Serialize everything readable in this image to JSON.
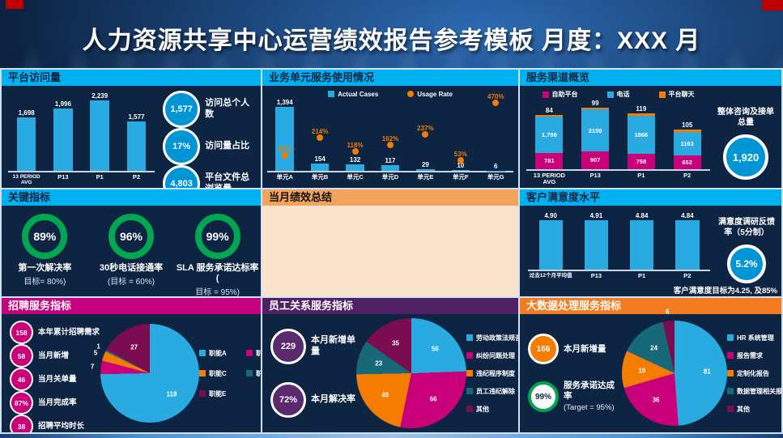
{
  "title": "人力资源共享中心运营绩效报告参考模板 月度：XXX 月",
  "colors": {
    "accent_cyan": "#00B0F0",
    "bar_blue": "#29ABE2",
    "magenta": "#C9007A",
    "orange": "#F47C00",
    "teal": "#17697A",
    "maroon": "#7C0C50",
    "green": "#00A650",
    "kpi_blue": "#0096D6",
    "header_magenta": "#C5007C",
    "header_purple": "#4F2063",
    "header_orange": "#F47B20",
    "summary_header": "#F2A45C",
    "summary_body": "#FBE3CD",
    "title_red": "#C00000",
    "panel_navy": "#0D2443"
  },
  "panels": {
    "platform": {
      "header": "平台访问量",
      "kpis": [
        {
          "value": "1,577",
          "label": "访问总个人数"
        },
        {
          "value": "17%",
          "label": "访问量占比"
        },
        {
          "value": "4,803",
          "label": "平台文件总浏览量"
        }
      ]
    },
    "business_units": {
      "header": "业务单元服务使用情况"
    },
    "channels": {
      "header": "服务渠道概览",
      "side_label": "整体咨询及接单总量",
      "total": "1,920"
    },
    "key_metrics": {
      "header": "关键指标",
      "gauges": [
        {
          "value": "89%",
          "label": "第一次解决率",
          "target": "目标= 80%)"
        },
        {
          "value": "96%",
          "label": "30秒电话接通率",
          "target": "(目标 = 60%)"
        },
        {
          "value": "99%",
          "label": "SLA 服务承诺达标率(",
          "target": "目标 = 95%)"
        }
      ]
    },
    "summary": {
      "header": "当月绩效总结"
    },
    "csat": {
      "header": "客户满意度水平",
      "side_label": "满意度调研反馈率（5分制）",
      "rate": "5.2%",
      "note": "客户满意度目标为4.25, 及85%"
    },
    "recruiting": {
      "header": "招聘服务指标",
      "kpis": [
        {
          "value": "158",
          "label": "本年累计招聘需求"
        },
        {
          "value": "58",
          "label": "当月新增"
        },
        {
          "value": "46",
          "label": "当月关单量"
        },
        {
          "value": "87%",
          "label": "当月完成率"
        },
        {
          "value": "38",
          "label": "招聘平均时长"
        }
      ]
    },
    "employee_relations": {
      "header": "员工关系服务指标",
      "kpis": [
        {
          "value": "229",
          "label": "本月新增单量"
        },
        {
          "value": "72%",
          "label": "本月解决率"
        }
      ]
    },
    "big_data": {
      "header": "大数据处理服务指标",
      "kpis": [
        {
          "value": "166",
          "label": "本月新增量"
        },
        {
          "value": "99%",
          "label": "服务承诺达成率",
          "sublabel": "(Target = 95%)"
        }
      ]
    }
  },
  "chart_data": [
    {
      "id": "platform-visits",
      "type": "bar",
      "categories": [
        "13 PERIOD\nAVG",
        "P13",
        "P1",
        "P2"
      ],
      "values": [
        1698,
        1996,
        2239,
        1577
      ],
      "value_labels": [
        "1,698",
        "1,996",
        "2,239",
        "1,577"
      ],
      "ylim": [
        0,
        2500
      ],
      "color": "#29ABE2"
    },
    {
      "id": "bu-usage",
      "type": "bar-dot-combo",
      "categories": [
        "单元A",
        "单元B",
        "单元C",
        "单元D",
        "单元E",
        "单元F",
        "单元G"
      ],
      "series": [
        {
          "name": "Actual Cases",
          "type": "bar",
          "color": "#29ABE2",
          "values": [
            1394,
            154,
            132,
            117,
            29,
            10,
            6
          ],
          "labels": [
            "1,394",
            "154",
            "132",
            "117",
            "29",
            "10",
            "6"
          ]
        },
        {
          "name": "Usage Rate",
          "type": "dot",
          "color": "#F47C00",
          "values": [
            "89%",
            "214%",
            "118%",
            "162%",
            "237%",
            "53%",
            "470%"
          ],
          "values_num": [
            89,
            214,
            118,
            162,
            237,
            53,
            470
          ]
        }
      ],
      "bar_max": 1500,
      "rate_max": 520,
      "legend": [
        {
          "label": "Actual Cases",
          "color": "#29ABE2",
          "shape": "square"
        },
        {
          "label": "Usage Rate",
          "color": "#F47C00",
          "shape": "dot"
        }
      ]
    },
    {
      "id": "channels",
      "type": "stacked-bar",
      "categories": [
        "13 PERIOD\nAVG",
        "P13",
        "P1",
        "P2"
      ],
      "series": [
        {
          "name": "自助平台",
          "color": "#C9007A",
          "values": [
            781,
            907,
            758,
            652
          ],
          "labels": [
            "781",
            "907",
            "758",
            "652"
          ]
        },
        {
          "name": "电话",
          "color": "#29ABE2",
          "values": [
            1798,
            2159,
            1866,
            1163
          ],
          "labels": [
            "1,798",
            "2159",
            "1866",
            "1163"
          ]
        },
        {
          "name": "平台聊天",
          "color": "#F47C00",
          "values": [
            84,
            99,
            119,
            105
          ],
          "labels": [
            "",
            "",
            "",
            ""
          ]
        }
      ],
      "top_labels": [
        "84",
        "99",
        "119",
        "105"
      ],
      "total_max": 3400,
      "legend": [
        {
          "label": "自助平台",
          "color": "#C9007A",
          "shape": "square"
        },
        {
          "label": "电话",
          "color": "#29ABE2",
          "shape": "square"
        },
        {
          "label": "平台聊天",
          "color": "#F47C00",
          "shape": "square"
        }
      ]
    },
    {
      "id": "csat",
      "type": "bar",
      "categories": [
        "过去12个月平均值",
        "P13",
        "P1",
        "P2"
      ],
      "values": [
        4.9,
        4.91,
        4.84,
        4.84
      ],
      "value_labels": [
        "4.90",
        "4.91",
        "4.84",
        "4.84"
      ],
      "ylim": [
        0,
        5.6
      ],
      "color": "#29ABE2"
    },
    {
      "id": "recruit-pie",
      "type": "pie",
      "labels": [
        "职能A",
        "职能B",
        "职能C",
        "职能D",
        "职能E"
      ],
      "values": [
        118,
        7,
        5,
        1,
        27
      ],
      "colors": [
        "#29ABE2",
        "#C9007A",
        "#F47C00",
        "#17697A",
        "#7C0C50"
      ]
    },
    {
      "id": "er-pie",
      "type": "pie",
      "labels": [
        "劳动政策法规咨询",
        "纠纷问题处理",
        "违纪程序制度",
        "员工违纪解除",
        "其他"
      ],
      "values": [
        56,
        66,
        49,
        23,
        35
      ],
      "colors": [
        "#29ABE2",
        "#C9007A",
        "#F47C00",
        "#17697A",
        "#7C0C50"
      ]
    },
    {
      "id": "bigdata-pie",
      "type": "pie",
      "labels": [
        "HR 系统管理",
        "报告需求",
        "定制化报告",
        "数据管理相关报告",
        "其他"
      ],
      "values": [
        81,
        36,
        19,
        24,
        6
      ],
      "colors": [
        "#29ABE2",
        "#C9007A",
        "#F47C00",
        "#17697A",
        "#7C0C50"
      ]
    }
  ]
}
